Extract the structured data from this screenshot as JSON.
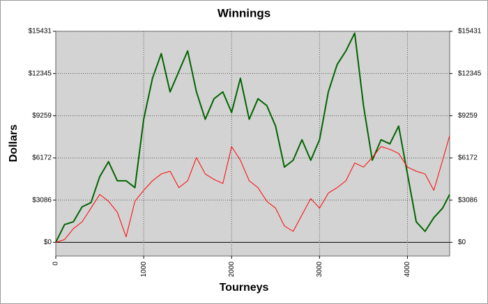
{
  "chart_data": {
    "type": "line",
    "title": "Winnings",
    "x_label": "Tourneys",
    "y_label": "Dollars",
    "x": [
      0,
      100,
      200,
      300,
      400,
      500,
      600,
      700,
      800,
      900,
      1000,
      1100,
      1200,
      1300,
      1400,
      1500,
      1600,
      1700,
      1800,
      1900,
      2000,
      2100,
      2200,
      2300,
      2400,
      2500,
      2600,
      2700,
      2800,
      2900,
      3000,
      3100,
      3200,
      3300,
      3400,
      3500,
      3600,
      3700,
      3800,
      3900,
      4000,
      4100,
      4200,
      4300,
      4400,
      4480
    ],
    "series": [
      {
        "color": "#006400",
        "values": [
          0,
          1300,
          1500,
          2600,
          2900,
          4800,
          5900,
          4500,
          4500,
          4000,
          9000,
          12000,
          13800,
          11000,
          12500,
          14000,
          11000,
          9000,
          10500,
          11000,
          9500,
          12000,
          9000,
          10500,
          10000,
          8500,
          5500,
          6000,
          7500,
          6000,
          7500,
          11000,
          13000,
          14000,
          15300,
          10000,
          6000,
          7500,
          7200,
          8500,
          5000,
          1500,
          800,
          1800,
          2500,
          3500
        ]
      },
      {
        "color": "#ff0000",
        "values": [
          0,
          200,
          1000,
          1500,
          2500,
          3500,
          3000,
          2200,
          400,
          3000,
          3800,
          4500,
          5000,
          5200,
          4000,
          4500,
          6200,
          5000,
          4600,
          4300,
          7000,
          6000,
          4500,
          4000,
          3000,
          2500,
          1200,
          800,
          2000,
          3200,
          2500,
          3600,
          4000,
          4500,
          5800,
          5500,
          6200,
          7000,
          6800,
          6500,
          5500,
          5200,
          5000,
          3800,
          6000,
          7800
        ]
      }
    ],
    "xlim": [
      0,
      4480
    ],
    "ylim": [
      -1000,
      15431
    ],
    "xticks": [
      0,
      1000,
      2000,
      3000,
      4000
    ],
    "yticks": [
      {
        "value": 0,
        "label": "$0"
      },
      {
        "value": 3086,
        "label": "$3086"
      },
      {
        "value": 6172,
        "label": "$6172"
      },
      {
        "value": 9259,
        "label": "$9259"
      },
      {
        "value": 12345,
        "label": "$12345"
      },
      {
        "value": 15431,
        "label": "$15431"
      }
    ],
    "grid": true
  }
}
